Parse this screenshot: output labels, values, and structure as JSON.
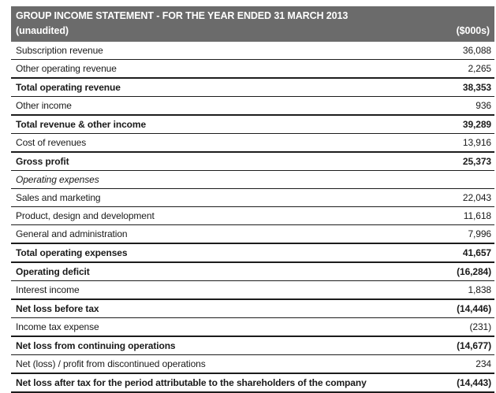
{
  "statement": {
    "title": "GROUP INCOME STATEMENT - FOR THE YEAR ENDED 31 MARCH 2013",
    "subtitle": "(unaudited)",
    "units": "($000s)",
    "colors": {
      "header_background": "#6b6b6b",
      "header_text": "#ffffff",
      "body_text": "#1a1a1a",
      "rule_line": "#1c1c1c"
    },
    "rows": [
      {
        "label": "Subscription revenue",
        "value": "36,088",
        "bold": false,
        "italic": false,
        "thick_bottom": false
      },
      {
        "label": "Other operating revenue",
        "value": "2,265",
        "bold": false,
        "italic": false,
        "thick_bottom": true
      },
      {
        "label": "Total operating revenue",
        "value": "38,353",
        "bold": true,
        "italic": false,
        "thick_bottom": false
      },
      {
        "label": "Other income",
        "value": "936",
        "bold": false,
        "italic": false,
        "thick_bottom": true
      },
      {
        "label": "Total revenue & other income",
        "value": "39,289",
        "bold": true,
        "italic": false,
        "thick_bottom": false
      },
      {
        "label": "Cost of revenues",
        "value": "13,916",
        "bold": false,
        "italic": false,
        "thick_bottom": true
      },
      {
        "label": "Gross profit",
        "value": "25,373",
        "bold": true,
        "italic": false,
        "thick_bottom": false
      },
      {
        "label": "Operating expenses",
        "value": "",
        "bold": false,
        "italic": true,
        "thick_bottom": false
      },
      {
        "label": "Sales and marketing",
        "value": "22,043",
        "bold": false,
        "italic": false,
        "thick_bottom": false
      },
      {
        "label": "Product, design and development",
        "value": "11,618",
        "bold": false,
        "italic": false,
        "thick_bottom": false
      },
      {
        "label": "General and administration",
        "value": "7,996",
        "bold": false,
        "italic": false,
        "thick_bottom": true
      },
      {
        "label": "Total operating expenses",
        "value": "41,657",
        "bold": true,
        "italic": false,
        "thick_bottom": true
      },
      {
        "label": "Operating deficit",
        "value": "(16,284)",
        "bold": true,
        "italic": false,
        "thick_bottom": false
      },
      {
        "label": "Interest income",
        "value": "1,838",
        "bold": false,
        "italic": false,
        "thick_bottom": true
      },
      {
        "label": "Net loss before tax",
        "value": "(14,446)",
        "bold": true,
        "italic": false,
        "thick_bottom": false
      },
      {
        "label": "Income tax expense",
        "value": "(231)",
        "bold": false,
        "italic": false,
        "thick_bottom": true
      },
      {
        "label": "Net loss from continuing operations",
        "value": "(14,677)",
        "bold": true,
        "italic": false,
        "thick_bottom": false
      },
      {
        "label": "Net (loss) / profit from discontinued operations",
        "value": "234",
        "bold": false,
        "italic": false,
        "thick_bottom": true
      },
      {
        "label": "Net loss after tax for the period attributable to the shareholders of the company",
        "value": "(14,443)",
        "bold": true,
        "italic": false,
        "thick_bottom": true
      }
    ]
  }
}
